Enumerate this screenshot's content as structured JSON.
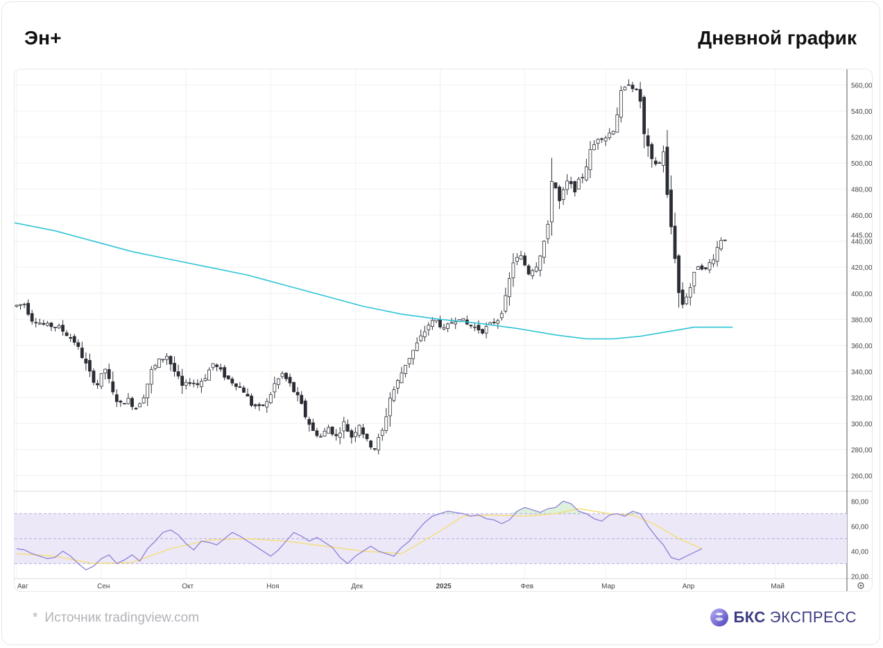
{
  "header": {
    "ticker": "Эн+",
    "timeframe": "Дневной график"
  },
  "footer": {
    "star": "*",
    "source": "Источник tradingview.com",
    "brand_bold": "БКС",
    "brand_light": "ЭКСПРЕСС"
  },
  "colors": {
    "candle_up_fill": "#ffffff",
    "candle_down_fill": "#2b2d35",
    "candle_stroke": "#2b2d35",
    "ma_line": "#2ec4d6",
    "rsi_line": "#8f80d6",
    "rsi_ma_line": "#f3df7c",
    "rsi_band": "#ece8f8",
    "grid": "#f0f0f3",
    "axis_text": "#444444",
    "brand": "#3a3a82"
  },
  "chart_data": [
    {
      "type": "candlestick",
      "title": "",
      "ylim": [
        248,
        572
      ],
      "y_ticks": [
        260,
        280,
        300,
        320,
        340,
        360,
        380,
        400,
        420,
        440,
        460,
        480,
        500,
        520,
        540,
        560
      ],
      "y_tick_labels": [
        "260,00",
        "280,00",
        "300,00",
        "320,00",
        "340,00",
        "360,00",
        "380,00",
        "400,00",
        "420,00",
        "440,00",
        "460,00",
        "480,00",
        "500,00",
        "520,00",
        "540,00",
        "560,00"
      ],
      "last_price": 445,
      "last_price_label": "445,00",
      "x_labels": [
        {
          "label": "Авг",
          "index": 0
        },
        {
          "label": "Сен",
          "index": 22
        },
        {
          "label": "Окт",
          "index": 44
        },
        {
          "label": "Ноя",
          "index": 66
        },
        {
          "label": "Дек",
          "index": 88
        },
        {
          "label": "2025",
          "index": 110
        },
        {
          "label": "Фев",
          "index": 132
        },
        {
          "label": "Мар",
          "index": 153
        },
        {
          "label": "Апр",
          "index": 174
        },
        {
          "label": "Май",
          "index": 197
        }
      ],
      "x_count": 212,
      "overlay": {
        "name": "",
        "points": [
          [
            -2,
            455
          ],
          [
            10,
            448
          ],
          [
            20,
            440
          ],
          [
            30,
            432
          ],
          [
            40,
            426
          ],
          [
            50,
            420
          ],
          [
            60,
            414
          ],
          [
            70,
            406
          ],
          [
            80,
            398
          ],
          [
            90,
            390
          ],
          [
            100,
            384
          ],
          [
            110,
            380
          ],
          [
            120,
            377
          ],
          [
            130,
            373
          ],
          [
            140,
            368
          ],
          [
            148,
            365
          ],
          [
            155,
            365
          ],
          [
            162,
            367
          ],
          [
            170,
            371
          ],
          [
            176,
            374
          ],
          [
            181,
            374
          ],
          [
            186,
            374
          ]
        ]
      }
    },
    {
      "type": "line",
      "title": "",
      "ylim": [
        18,
        88
      ],
      "y_ticks": [
        20,
        40,
        60,
        80
      ],
      "y_tick_labels": [
        "20,00",
        "40,00",
        "60,00",
        "80,00"
      ],
      "band": [
        30,
        70
      ],
      "midline": 50,
      "series": [
        {
          "name": "",
          "points": [
            [
              0,
              42
            ],
            [
              2,
              41
            ],
            [
              4,
              38
            ],
            [
              6,
              36
            ],
            [
              8,
              34
            ],
            [
              10,
              35
            ],
            [
              12,
              40
            ],
            [
              14,
              36
            ],
            [
              16,
              30
            ],
            [
              18,
              25
            ],
            [
              20,
              28
            ],
            [
              22,
              34
            ],
            [
              24,
              37
            ],
            [
              26,
              30
            ],
            [
              28,
              33
            ],
            [
              30,
              37
            ],
            [
              32,
              32
            ],
            [
              34,
              42
            ],
            [
              36,
              48
            ],
            [
              38,
              55
            ],
            [
              40,
              57
            ],
            [
              42,
              53
            ],
            [
              44,
              46
            ],
            [
              46,
              41
            ],
            [
              48,
              48
            ],
            [
              50,
              47
            ],
            [
              52,
              45
            ],
            [
              54,
              50
            ],
            [
              56,
              55
            ],
            [
              58,
              52
            ],
            [
              60,
              48
            ],
            [
              62,
              44
            ],
            [
              64,
              40
            ],
            [
              66,
              36
            ],
            [
              68,
              41
            ],
            [
              70,
              48
            ],
            [
              72,
              55
            ],
            [
              74,
              52
            ],
            [
              76,
              48
            ],
            [
              78,
              51
            ],
            [
              80,
              47
            ],
            [
              82,
              43
            ],
            [
              84,
              35
            ],
            [
              86,
              30
            ],
            [
              88,
              36
            ],
            [
              90,
              40
            ],
            [
              92,
              44
            ],
            [
              94,
              40
            ],
            [
              96,
              38
            ],
            [
              98,
              36
            ],
            [
              100,
              43
            ],
            [
              102,
              48
            ],
            [
              104,
              56
            ],
            [
              106,
              63
            ],
            [
              108,
              68
            ],
            [
              110,
              70
            ],
            [
              112,
              72
            ],
            [
              114,
              71
            ],
            [
              116,
              70
            ],
            [
              118,
              68
            ],
            [
              120,
              69
            ],
            [
              122,
              66
            ],
            [
              124,
              65
            ],
            [
              126,
              62
            ],
            [
              128,
              65
            ],
            [
              130,
              72
            ],
            [
              132,
              75
            ],
            [
              134,
              73
            ],
            [
              136,
              71
            ],
            [
              138,
              74
            ],
            [
              140,
              75
            ],
            [
              142,
              80
            ],
            [
              144,
              78
            ],
            [
              146,
              72
            ],
            [
              148,
              70
            ],
            [
              150,
              66
            ],
            [
              152,
              64
            ],
            [
              154,
              69
            ],
            [
              156,
              70
            ],
            [
              158,
              68
            ],
            [
              160,
              72
            ],
            [
              162,
              70
            ],
            [
              164,
              60
            ],
            [
              166,
              52
            ],
            [
              168,
              45
            ],
            [
              170,
              35
            ],
            [
              172,
              33
            ],
            [
              174,
              36
            ],
            [
              176,
              39
            ],
            [
              178,
              42
            ]
          ]
        },
        {
          "name": "",
          "points": [
            [
              0,
              38
            ],
            [
              10,
              36
            ],
            [
              20,
              30
            ],
            [
              30,
              31
            ],
            [
              40,
              42
            ],
            [
              50,
              49
            ],
            [
              60,
              50
            ],
            [
              70,
              48
            ],
            [
              80,
              44
            ],
            [
              90,
              40
            ],
            [
              100,
              38
            ],
            [
              110,
              56
            ],
            [
              116,
              68
            ],
            [
              124,
              69
            ],
            [
              132,
              68
            ],
            [
              140,
              70
            ],
            [
              146,
              74
            ],
            [
              154,
              70
            ],
            [
              160,
              69
            ],
            [
              166,
              61
            ],
            [
              172,
              50
            ],
            [
              178,
              42
            ]
          ]
        }
      ]
    }
  ]
}
